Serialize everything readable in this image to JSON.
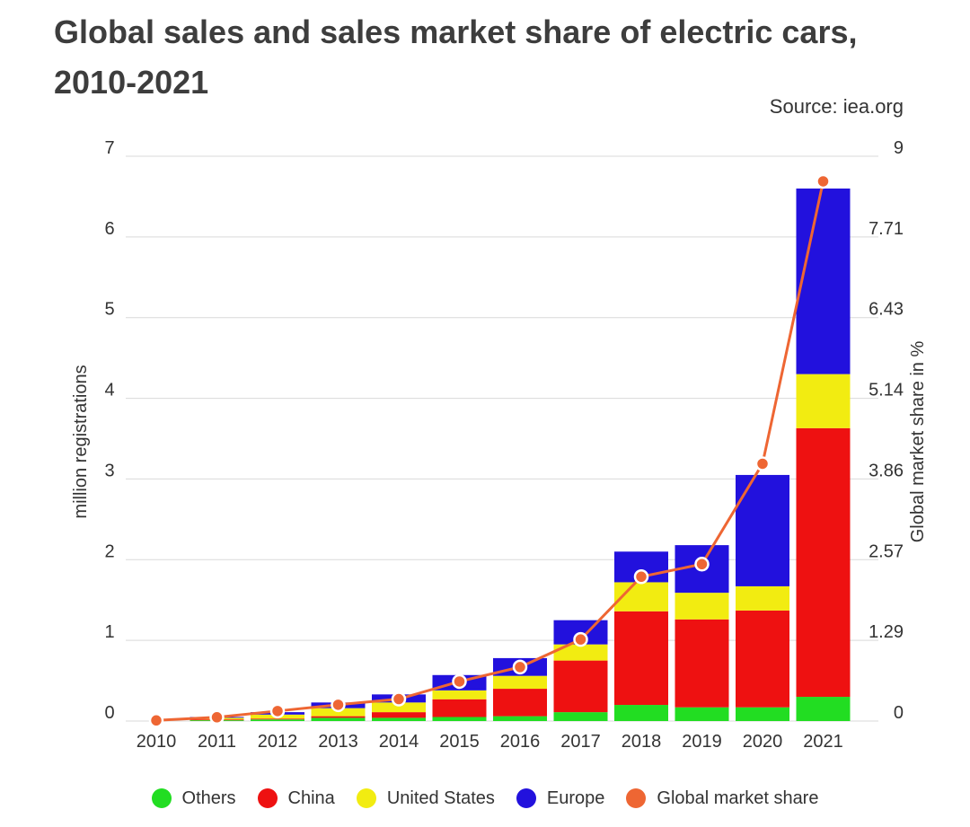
{
  "title": "Global sales and sales market share of electric cars, 2010-2021",
  "source": "Source: iea.org",
  "chart_data": {
    "type": "bar",
    "stacked": true,
    "categories": [
      "2010",
      "2011",
      "2012",
      "2013",
      "2014",
      "2015",
      "2016",
      "2017",
      "2018",
      "2019",
      "2020",
      "2021"
    ],
    "series": [
      {
        "name": "Others",
        "color": "#22dd22",
        "values": [
          0.0,
          0.01,
          0.02,
          0.04,
          0.04,
          0.05,
          0.06,
          0.11,
          0.2,
          0.17,
          0.17,
          0.3
        ]
      },
      {
        "name": "China",
        "color": "#ee1111",
        "values": [
          0.0,
          0.01,
          0.01,
          0.02,
          0.07,
          0.22,
          0.34,
          0.64,
          1.16,
          1.09,
          1.2,
          3.33
        ]
      },
      {
        "name": "United States",
        "color": "#f2ec11",
        "values": [
          0.0,
          0.02,
          0.05,
          0.1,
          0.12,
          0.11,
          0.16,
          0.2,
          0.36,
          0.33,
          0.3,
          0.67
        ]
      },
      {
        "name": "Europe",
        "color": "#2211dd",
        "values": [
          0.0,
          0.01,
          0.03,
          0.07,
          0.1,
          0.19,
          0.22,
          0.3,
          0.38,
          0.59,
          1.38,
          2.3
        ]
      }
    ],
    "line_series": {
      "name": "Global market share",
      "color": "#ee6633",
      "axis": "right",
      "values": [
        0.01,
        0.06,
        0.16,
        0.26,
        0.35,
        0.63,
        0.86,
        1.3,
        2.3,
        2.5,
        4.1,
        8.6
      ]
    },
    "ylabel": "million registrations",
    "ylim": [
      0,
      7
    ],
    "yticks": [
      "0",
      "1",
      "2",
      "3",
      "4",
      "5",
      "6",
      "7"
    ],
    "y2label": "Global market share in %",
    "y2lim": [
      0,
      9
    ],
    "y2ticks": [
      "0",
      "1.29",
      "2.57",
      "3.86",
      "5.14",
      "6.43",
      "7.71",
      "9"
    ],
    "grid": true,
    "legend_position": "bottom"
  }
}
